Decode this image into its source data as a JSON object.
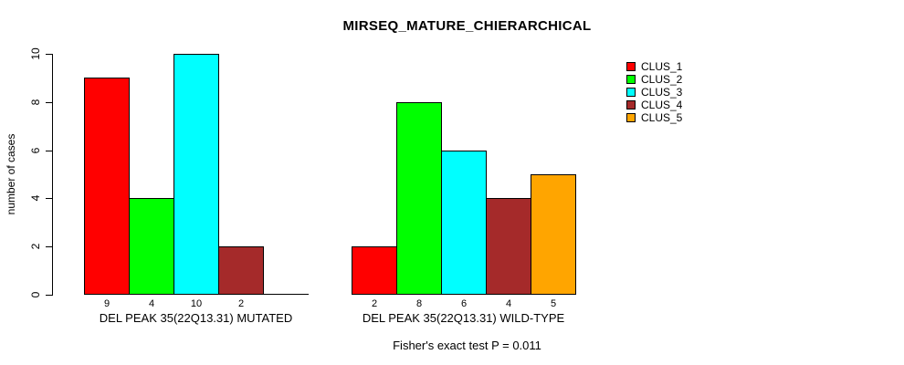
{
  "chart_data": {
    "type": "bar",
    "title": "MIRSEQ_MATURE_CHIERARCHICAL",
    "ylabel": "number of cases",
    "ylim": [
      0,
      10
    ],
    "yticks": [
      0,
      2,
      4,
      6,
      8,
      10
    ],
    "grid": false,
    "categories": [
      "DEL PEAK 35(22Q13.31) MUTATED",
      "DEL PEAK 35(22Q13.31) WILD-TYPE"
    ],
    "series": [
      {
        "name": "CLUS_1",
        "color": "#FF0000",
        "values": [
          9,
          2
        ]
      },
      {
        "name": "CLUS_2",
        "color": "#00FF00",
        "values": [
          4,
          8
        ]
      },
      {
        "name": "CLUS_3",
        "color": "#00FFFF",
        "values": [
          10,
          6
        ]
      },
      {
        "name": "CLUS_4",
        "color": "#A52A2A",
        "values": [
          2,
          4
        ]
      },
      {
        "name": "CLUS_5",
        "color": "#FFA500",
        "values": [
          0,
          5
        ]
      }
    ],
    "bar_value_labels": [
      [
        "9",
        "4",
        "10",
        "2",
        ""
      ],
      [
        "2",
        "8",
        "6",
        "4",
        "5"
      ]
    ],
    "legend": {
      "position": "right",
      "entries": [
        "CLUS_1",
        "CLUS_2",
        "CLUS_3",
        "CLUS_4",
        "CLUS_5"
      ]
    },
    "footnote": "Fisher's exact test P = 0.011",
    "axis_color": "#000000",
    "background_color": "#ffffff"
  }
}
